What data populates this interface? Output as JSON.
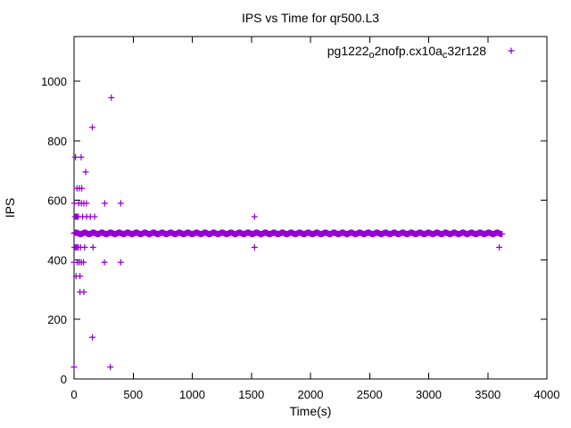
{
  "chart_data": {
    "type": "scatter",
    "title": "IPS vs Time for qr500.L3",
    "xlabel": "Time(s)",
    "ylabel": "IPS",
    "xlim": [
      0,
      4000
    ],
    "ylim": [
      0,
      1150
    ],
    "xticks": [
      0,
      500,
      1000,
      1500,
      2000,
      2500,
      3000,
      3500,
      4000
    ],
    "yticks": [
      0,
      200,
      400,
      600,
      800,
      1000
    ],
    "grid": false,
    "background_color": "#ffffff",
    "border_color": "#000000",
    "legend": {
      "label": "pg1222_o2nofp.cx10a_c32r128",
      "label_parts": [
        {
          "text": "pg1222",
          "sub": false
        },
        {
          "text": "o",
          "sub": true
        },
        {
          "text": "2nofp.cx10a",
          "sub": false
        },
        {
          "text": "c",
          "sub": true
        },
        {
          "text": "32r128",
          "sub": false
        }
      ],
      "position": "top-right-inside",
      "marker": "plus"
    },
    "series": [
      {
        "name": "pg1222_o2nofp.cx10a_c32r128",
        "color": "#9400d3",
        "marker": "plus",
        "scatter_points": [
          [
            315,
            945
          ],
          [
            155,
            845
          ],
          [
            12,
            745
          ],
          [
            60,
            745
          ],
          [
            98,
            695
          ],
          [
            25,
            640
          ],
          [
            45,
            640
          ],
          [
            65,
            640
          ],
          [
            2,
            590
          ],
          [
            40,
            590
          ],
          [
            62,
            590
          ],
          [
            82,
            590
          ],
          [
            105,
            590
          ],
          [
            260,
            590
          ],
          [
            395,
            590
          ],
          [
            10,
            545
          ],
          [
            18,
            545
          ],
          [
            26,
            545
          ],
          [
            36,
            545
          ],
          [
            72,
            545
          ],
          [
            106,
            545
          ],
          [
            138,
            545
          ],
          [
            174,
            545
          ],
          [
            1527,
            545
          ],
          [
            5,
            442
          ],
          [
            14,
            442
          ],
          [
            24,
            442
          ],
          [
            36,
            442
          ],
          [
            55,
            442
          ],
          [
            90,
            442
          ],
          [
            160,
            442
          ],
          [
            1527,
            442
          ],
          [
            3597,
            442
          ],
          [
            0,
            392
          ],
          [
            28,
            392
          ],
          [
            45,
            392
          ],
          [
            62,
            392
          ],
          [
            80,
            392
          ],
          [
            257,
            392
          ],
          [
            395,
            392
          ],
          [
            17,
            345
          ],
          [
            50,
            345
          ],
          [
            50,
            292
          ],
          [
            83,
            292
          ],
          [
            155,
            140
          ],
          [
            0,
            40
          ],
          [
            307,
            40
          ]
        ],
        "steady_band": {
          "t_start": 0,
          "t_end": 3620,
          "n_points": 740,
          "ips_center": 489,
          "ips_jitter": 2.5
        }
      }
    ]
  }
}
